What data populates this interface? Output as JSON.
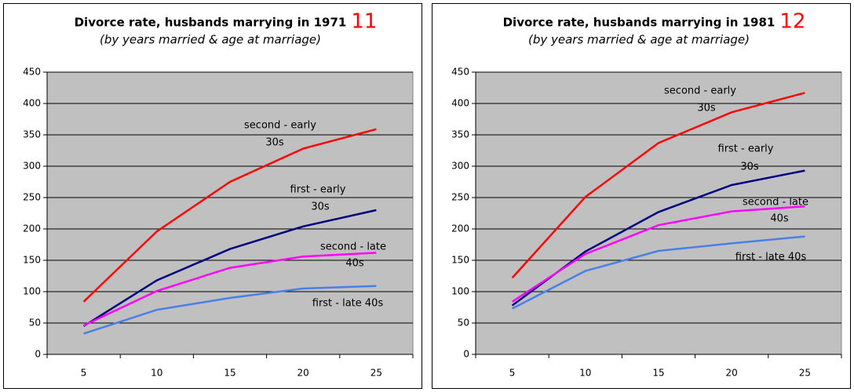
{
  "chart_data": [
    {
      "type": "line",
      "title": "Divorce rate, husbands marrying in 1971",
      "number": "11",
      "subtitle": "(by years married & age at marriage)",
      "categories": [
        "5",
        "10",
        "15",
        "20",
        "25"
      ],
      "ylim": [
        0,
        450
      ],
      "yticks": [
        0,
        50,
        100,
        150,
        200,
        250,
        300,
        350,
        400,
        450
      ],
      "grid": true,
      "series": [
        {
          "label": [
            "second - early",
            "30s"
          ],
          "color": "#ff0000",
          "values": [
            84,
            196,
            275,
            328,
            359
          ]
        },
        {
          "label": [
            "first - early",
            "30s"
          ],
          "color": "#000080",
          "values": [
            45,
            118,
            168,
            204,
            230
          ]
        },
        {
          "label": [
            "second - late",
            "40s"
          ],
          "color": "#ff00ff",
          "values": [
            46,
            101,
            138,
            156,
            162
          ]
        },
        {
          "label": [
            "first - late 40s"
          ],
          "color": "#4a7fe8",
          "values": [
            33,
            71,
            90,
            105,
            109
          ]
        }
      ]
    },
    {
      "type": "line",
      "title": "Divorce rate, husbands marrying in 1981",
      "number": "12",
      "subtitle": "(by years married & age at marriage)",
      "categories": [
        "5",
        "10",
        "15",
        "20",
        "25"
      ],
      "ylim": [
        0,
        450
      ],
      "yticks": [
        0,
        50,
        100,
        150,
        200,
        250,
        300,
        350,
        400,
        450
      ],
      "grid": true,
      "series": [
        {
          "label": [
            "second - early",
            "30s"
          ],
          "color": "#ff0000",
          "values": [
            122,
            251,
            337,
            386,
            417
          ]
        },
        {
          "label": [
            "first - early",
            "30s"
          ],
          "color": "#000080",
          "values": [
            78,
            164,
            227,
            270,
            293
          ]
        },
        {
          "label": [
            "second - late",
            "40s"
          ],
          "color": "#ff00ff",
          "values": [
            84,
            160,
            206,
            228,
            236
          ]
        },
        {
          "label": [
            "first - late 40s"
          ],
          "color": "#4a7fe8",
          "values": [
            73,
            133,
            165,
            177,
            188
          ]
        }
      ]
    }
  ]
}
